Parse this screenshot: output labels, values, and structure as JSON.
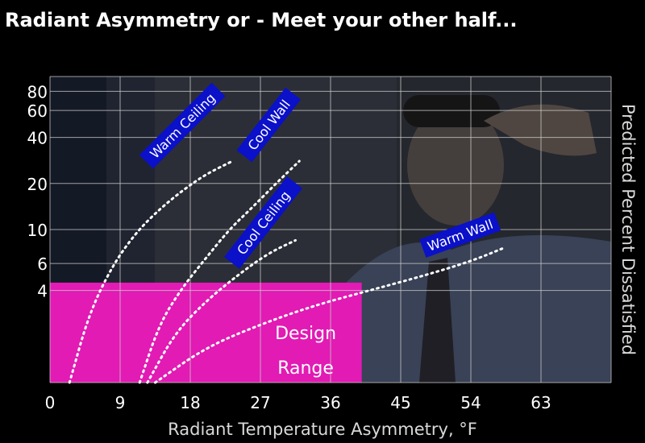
{
  "colors": {
    "background": "#000000",
    "photo_left": "#1b2233",
    "photo_wall": "#3a3e49",
    "photo_shirt": "#4d5973",
    "grid": "#cfcfcf",
    "design_fill": "#e11bb4",
    "label_box": "#0b10c9",
    "curve": "#ffffff",
    "text": "#ffffff"
  },
  "chart_data": {
    "type": "line",
    "title": "Radiant Asymmetry or - Meet your other half...",
    "xlabel": "Radiant Temperature Asymmetry, °F",
    "ylabel": "Predicted Percent Dissatisfied",
    "x_ticks": [
      0,
      9,
      18,
      27,
      36,
      45,
      54,
      63
    ],
    "xlim": [
      0,
      72
    ],
    "y_scale": "log",
    "ylim": [
      1,
      100
    ],
    "y_ticks": [
      4,
      6,
      10,
      20,
      40,
      60,
      80
    ],
    "grid": true,
    "line_style": "dotted",
    "series": [
      {
        "name": "Warm Ceiling",
        "x": [
          2.5,
          5,
          8,
          11,
          14,
          17,
          20,
          23.4
        ],
        "y": [
          1.0,
          2.8,
          5.8,
          9.5,
          13.5,
          18,
          23,
          28
        ]
      },
      {
        "name": "Cool Wall",
        "x": [
          11.5,
          14,
          17,
          20,
          23,
          26,
          29,
          32
        ],
        "y": [
          1.0,
          2.4,
          4.2,
          6.5,
          10,
          14,
          20,
          28
        ]
      },
      {
        "name": "Cool Ceiling",
        "x": [
          12.5,
          16,
          20,
          24,
          28,
          31.5
        ],
        "y": [
          1.0,
          2.1,
          3.4,
          5.0,
          7.0,
          8.5
        ]
      },
      {
        "name": "Warm Wall",
        "x": [
          13.5,
          20,
          27,
          34,
          41,
          48,
          54,
          58
        ],
        "y": [
          1.0,
          1.7,
          2.4,
          3.2,
          4.0,
          5.0,
          6.2,
          7.5
        ]
      }
    ],
    "annotations": [
      {
        "text": "Design Range",
        "lines": [
          "Design",
          "Range"
        ],
        "x_range": [
          0,
          40
        ],
        "y_range": [
          1,
          4.5
        ]
      }
    ]
  }
}
